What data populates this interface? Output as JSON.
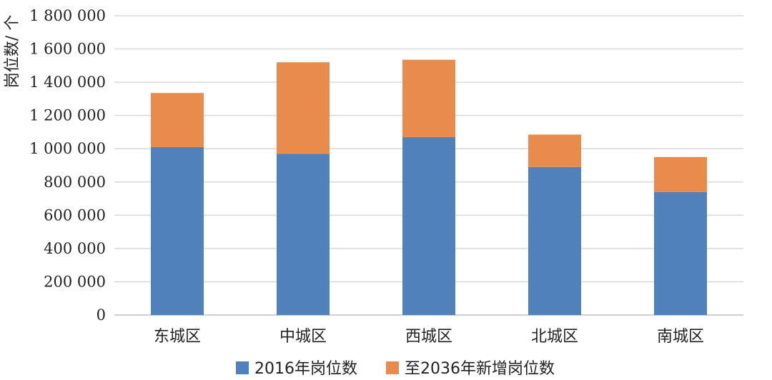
{
  "chart_data": {
    "type": "bar",
    "stacked": true,
    "title": "",
    "xlabel": "",
    "ylabel": "岗位数/ 个",
    "categories": [
      "东城区",
      "中城区",
      "西城区",
      "北城区",
      "南城区"
    ],
    "series": [
      {
        "name": "2016年岗位数",
        "values": [
          1010000,
          970000,
          1070000,
          890000,
          740000
        ],
        "color": "#4F81BD"
      },
      {
        "name": "至2036年新增岗位数",
        "values": [
          325000,
          550000,
          465000,
          195000,
          210000
        ],
        "color": "#E88B4C"
      }
    ],
    "ylim": [
      0,
      1800000
    ],
    "yticks": [
      0,
      200000,
      400000,
      600000,
      800000,
      1000000,
      1200000,
      1400000,
      1600000,
      1800000
    ],
    "ytick_labels": [
      "0",
      "200 000",
      "400 000",
      "600 000",
      "800 000",
      "1 000 000",
      "1 200 000",
      "1 400 000",
      "1 600 000",
      "1 800 000"
    ],
    "grid": true,
    "legend_position": "bottom"
  }
}
